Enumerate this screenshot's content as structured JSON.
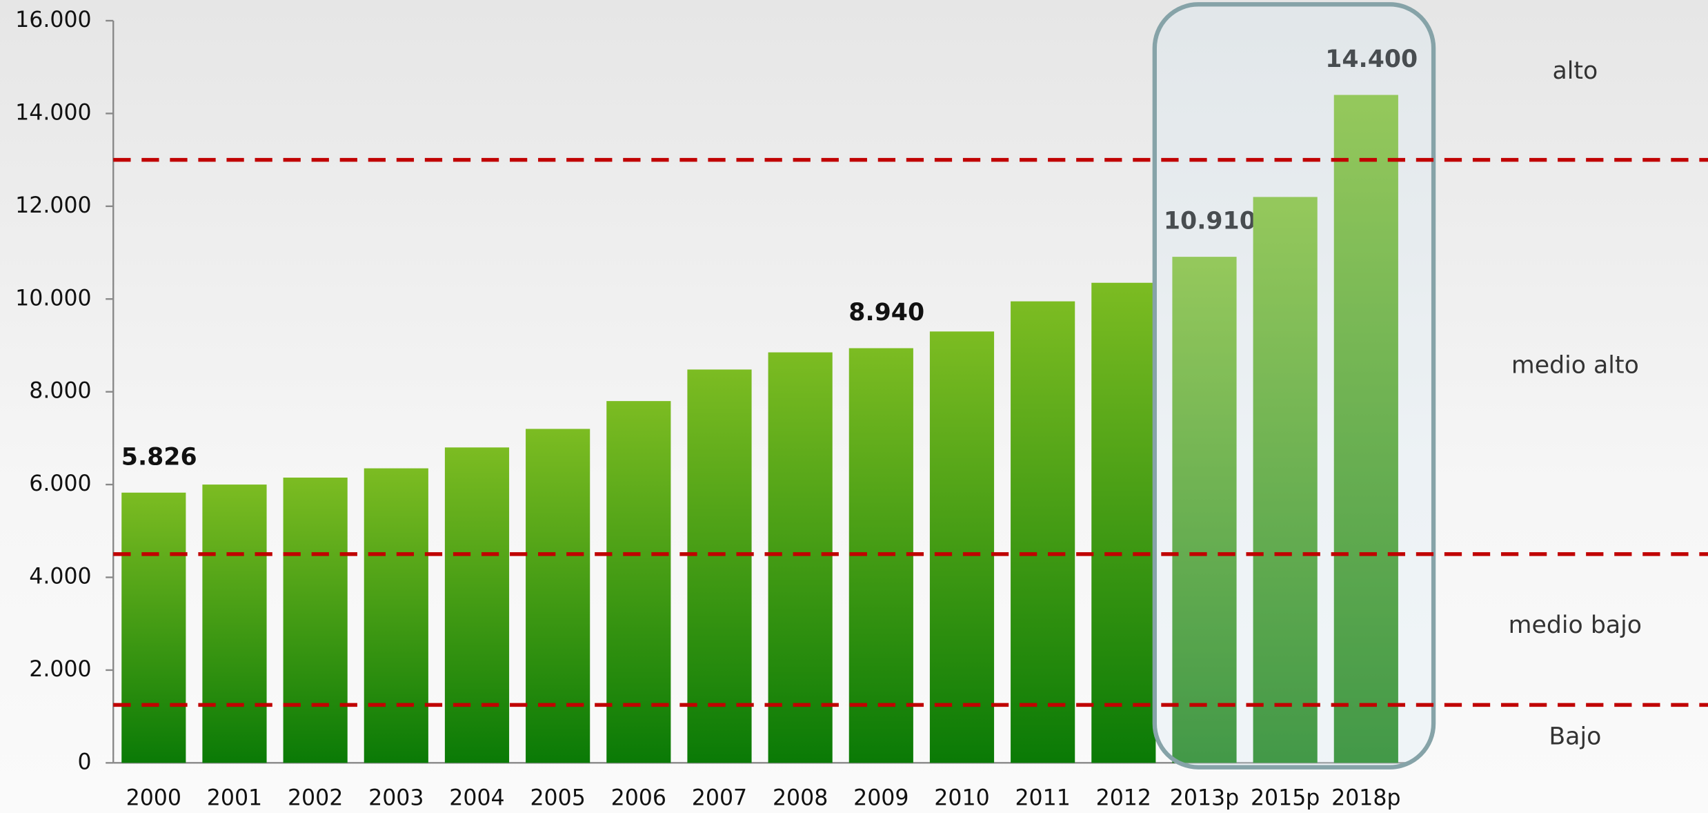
{
  "chart_data": {
    "type": "bar",
    "categories": [
      "2000",
      "2001",
      "2002",
      "2003",
      "2004",
      "2005",
      "2006",
      "2007",
      "2008",
      "2009",
      "2010",
      "2011",
      "2012",
      "2013p",
      "2015p",
      "2018p"
    ],
    "values": [
      5826,
      6000,
      6150,
      6350,
      6800,
      7200,
      7800,
      8480,
      8850,
      8940,
      9300,
      9950,
      10350,
      10910,
      12200,
      14400
    ],
    "value_labels": [
      "5.826",
      null,
      null,
      null,
      null,
      null,
      null,
      null,
      null,
      "8.940",
      null,
      null,
      null,
      "10.910",
      null,
      "14.400"
    ],
    "color": "#3a9a14",
    "ylim": [
      0,
      16000
    ],
    "yticks": [
      0,
      {
        "value": 2000,
        "label": "2.000"
      },
      {
        "value": 4000,
        "label": "4.000"
      },
      {
        "value": 6000,
        "label": "6.000"
      },
      {
        "value": 8000,
        "label": "8.000"
      },
      {
        "value": 10000,
        "label": "10.000"
      },
      {
        "value": 12000,
        "label": "12.000"
      },
      {
        "value": 14000,
        "label": "14.000"
      },
      {
        "value": 16000,
        "label": "16.000"
      }
    ],
    "thresholds": [
      13000,
      4500,
      1250
    ],
    "threshold_color": "#c00000",
    "bands": [
      {
        "label": "alto",
        "center": 14900
      },
      {
        "label": "medio alto",
        "center": 8550
      },
      {
        "label": "medio bajo",
        "center": 2950
      },
      {
        "label": "Bajo",
        "center": 550
      }
    ],
    "grid": false
  }
}
